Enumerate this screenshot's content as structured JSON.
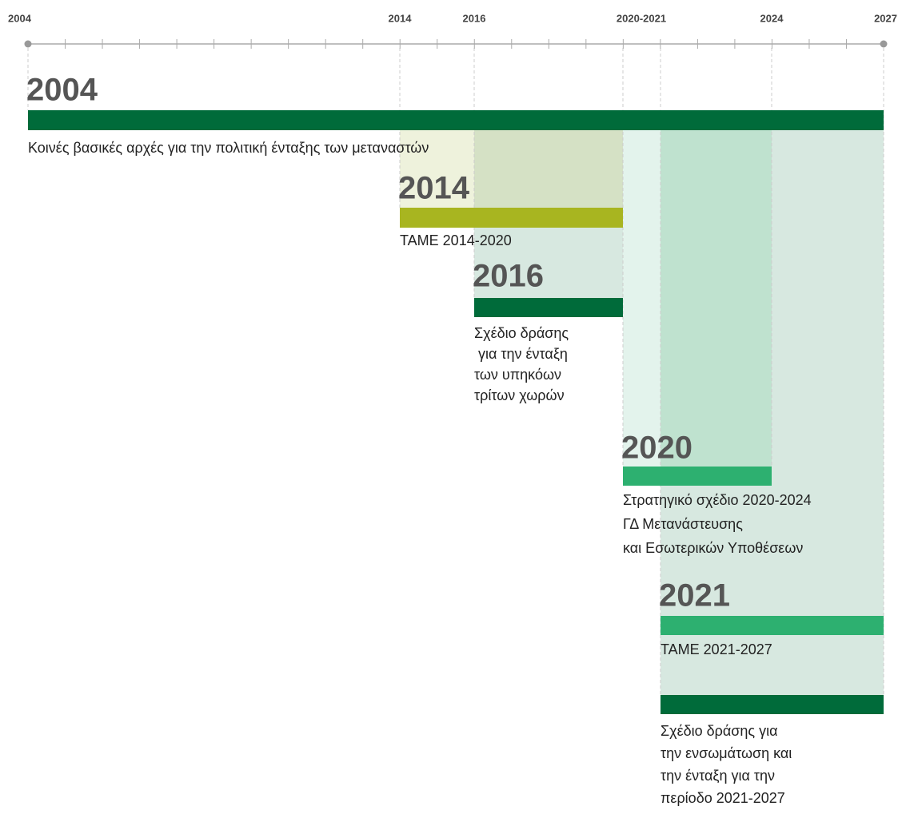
{
  "axis": {
    "labels": [
      "2004",
      "2014",
      "2016",
      "2020-2021",
      "2024",
      "2027"
    ]
  },
  "items": [
    {
      "year": "2004",
      "text": [
        "Κοινές βασικές αρχές για την πολιτική ένταξης των μεταναστών"
      ]
    },
    {
      "year": "2014",
      "text": [
        "ΤΑΜΕ 2014-2020"
      ]
    },
    {
      "year": "2016",
      "text": [
        "Σχέδιο δράσης",
        " για την ένταξη",
        "των υπηκόων",
        "τρίτων χωρών"
      ]
    },
    {
      "year": "2020",
      "text": [
        "Στρατηγικό σχέδιο 2020-2024",
        "ΓΔ Μετανάστευσης",
        "και Εσωτερικών Υποθέσεων"
      ]
    },
    {
      "year": "2021",
      "text": [
        "ΤΑΜΕ 2021-2027"
      ]
    },
    {
      "text": [
        "Σχέδιο δράσης για",
        "την ενσωμάτωση και",
        "την ένταξη για την",
        "περίοδο 2021-2027"
      ]
    }
  ]
}
